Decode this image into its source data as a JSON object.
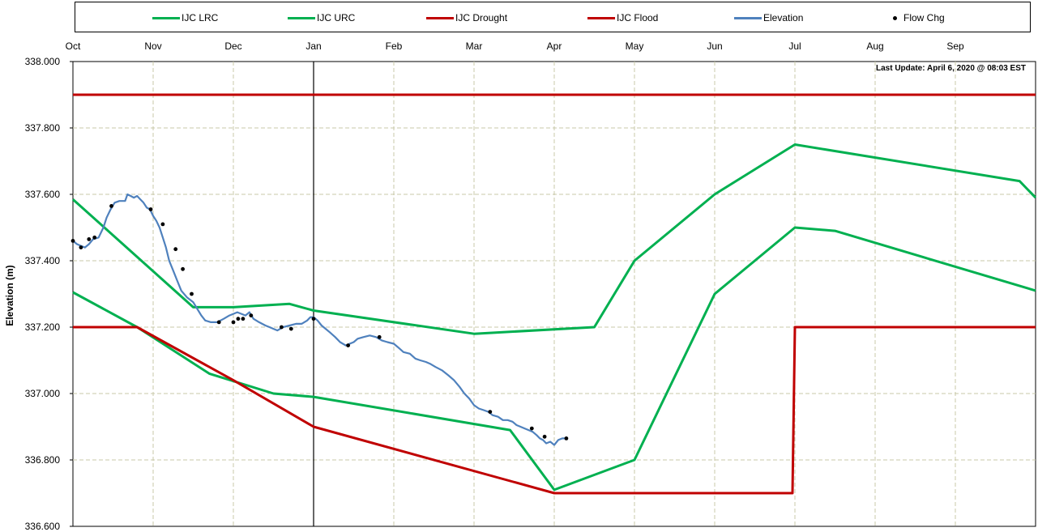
{
  "chart_data": {
    "type": "line",
    "title": "",
    "annotation": "Last Update:  April 6, 2020 @ 08:03 EST",
    "ylabel": "Elevation (m)",
    "xlabel": "",
    "ylim": [
      336.6,
      338.0
    ],
    "y_ticks": [
      "338.000",
      "337.800",
      "337.600",
      "337.400",
      "337.200",
      "337.000",
      "336.800",
      "336.600"
    ],
    "x_categories": [
      "Oct",
      "Nov",
      "Dec",
      "Jan",
      "Feb",
      "Mar",
      "Apr",
      "May",
      "Jun",
      "Jul",
      "Aug",
      "Sep"
    ],
    "x_range_months": [
      0,
      12
    ],
    "current_date_marker_month": 3,
    "grid": true,
    "legend_position": "top",
    "series": [
      {
        "name": "IJC LRC",
        "color": "#00b050",
        "style": "line",
        "points": [
          [
            0,
            337.585
          ],
          [
            1.5,
            337.26
          ],
          [
            2.0,
            337.26
          ],
          [
            2.7,
            337.27
          ],
          [
            3.0,
            337.25
          ],
          [
            5.0,
            337.18
          ],
          [
            6.5,
            337.2
          ],
          [
            7.0,
            337.4
          ],
          [
            8.0,
            337.6
          ],
          [
            9.0,
            337.75
          ],
          [
            11.8,
            337.64
          ],
          [
            12.0,
            337.59
          ]
        ]
      },
      {
        "name": "IJC URC",
        "color": "#00b050",
        "style": "line",
        "points": [
          [
            0,
            337.305
          ],
          [
            0.8,
            337.2
          ],
          [
            1.7,
            337.06
          ],
          [
            2.5,
            337.0
          ],
          [
            3.0,
            336.99
          ],
          [
            5.45,
            336.89
          ],
          [
            6.0,
            336.71
          ],
          [
            7.0,
            336.8
          ],
          [
            8.0,
            337.3
          ],
          [
            9.0,
            337.5
          ],
          [
            9.5,
            337.49
          ],
          [
            12.0,
            337.31
          ]
        ]
      },
      {
        "name": "IJC Drought",
        "color": "#c00000",
        "style": "line",
        "points": [
          [
            0,
            337.2
          ],
          [
            0.8,
            337.2
          ],
          [
            2.0,
            337.04
          ],
          [
            3.0,
            336.9
          ],
          [
            6.0,
            336.7
          ],
          [
            8.97,
            336.7
          ],
          [
            9.0,
            337.2
          ],
          [
            12.0,
            337.2
          ]
        ]
      },
      {
        "name": "IJC Flood",
        "color": "#c00000",
        "style": "line",
        "points": [
          [
            0,
            337.9
          ],
          [
            12.0,
            337.9
          ]
        ]
      },
      {
        "name": "Elevation",
        "color": "#4f81bd",
        "style": "line",
        "points": [
          [
            0,
            337.46
          ],
          [
            0.05,
            337.45
          ],
          [
            0.1,
            337.445
          ],
          [
            0.15,
            337.44
          ],
          [
            0.2,
            337.45
          ],
          [
            0.25,
            337.465
          ],
          [
            0.32,
            337.47
          ],
          [
            0.38,
            337.5
          ],
          [
            0.42,
            337.53
          ],
          [
            0.47,
            337.555
          ],
          [
            0.52,
            337.575
          ],
          [
            0.58,
            337.58
          ],
          [
            0.65,
            337.58
          ],
          [
            0.68,
            337.6
          ],
          [
            0.72,
            337.595
          ],
          [
            0.76,
            337.59
          ],
          [
            0.8,
            337.595
          ],
          [
            0.84,
            337.585
          ],
          [
            0.88,
            337.575
          ],
          [
            0.92,
            337.56
          ],
          [
            0.96,
            337.555
          ],
          [
            1.0,
            337.535
          ],
          [
            1.04,
            337.52
          ],
          [
            1.08,
            337.5
          ],
          [
            1.12,
            337.47
          ],
          [
            1.16,
            337.44
          ],
          [
            1.2,
            337.4
          ],
          [
            1.25,
            337.37
          ],
          [
            1.3,
            337.34
          ],
          [
            1.35,
            337.31
          ],
          [
            1.42,
            337.29
          ],
          [
            1.5,
            337.275
          ],
          [
            1.55,
            337.255
          ],
          [
            1.6,
            337.235
          ],
          [
            1.65,
            337.22
          ],
          [
            1.72,
            337.215
          ],
          [
            1.8,
            337.215
          ],
          [
            1.88,
            337.225
          ],
          [
            1.95,
            337.235
          ],
          [
            2.0,
            337.24
          ],
          [
            2.05,
            337.245
          ],
          [
            2.1,
            337.24
          ],
          [
            2.15,
            337.235
          ],
          [
            2.2,
            337.245
          ],
          [
            2.25,
            337.225
          ],
          [
            2.32,
            337.215
          ],
          [
            2.4,
            337.205
          ],
          [
            2.45,
            337.2
          ],
          [
            2.5,
            337.195
          ],
          [
            2.55,
            337.19
          ],
          [
            2.62,
            337.2
          ],
          [
            2.7,
            337.205
          ],
          [
            2.78,
            337.21
          ],
          [
            2.85,
            337.21
          ],
          [
            2.92,
            337.22
          ],
          [
            2.96,
            337.23
          ],
          [
            3.0,
            337.23
          ],
          [
            3.05,
            337.22
          ],
          [
            3.1,
            337.205
          ],
          [
            3.15,
            337.195
          ],
          [
            3.2,
            337.185
          ],
          [
            3.27,
            337.17
          ],
          [
            3.33,
            337.155
          ],
          [
            3.4,
            337.145
          ],
          [
            3.45,
            337.15
          ],
          [
            3.5,
            337.155
          ],
          [
            3.55,
            337.165
          ],
          [
            3.62,
            337.17
          ],
          [
            3.7,
            337.175
          ],
          [
            3.78,
            337.17
          ],
          [
            3.85,
            337.16
          ],
          [
            3.92,
            337.155
          ],
          [
            4.0,
            337.15
          ],
          [
            4.05,
            337.14
          ],
          [
            4.12,
            337.125
          ],
          [
            4.2,
            337.12
          ],
          [
            4.27,
            337.105
          ],
          [
            4.33,
            337.1
          ],
          [
            4.4,
            337.095
          ],
          [
            4.45,
            337.09
          ],
          [
            4.52,
            337.08
          ],
          [
            4.6,
            337.07
          ],
          [
            4.68,
            337.055
          ],
          [
            4.75,
            337.04
          ],
          [
            4.82,
            337.02
          ],
          [
            4.88,
            337.0
          ],
          [
            4.94,
            336.985
          ],
          [
            5.0,
            336.965
          ],
          [
            5.06,
            336.955
          ],
          [
            5.12,
            336.95
          ],
          [
            5.18,
            336.945
          ],
          [
            5.23,
            336.935
          ],
          [
            5.3,
            336.93
          ],
          [
            5.36,
            336.92
          ],
          [
            5.42,
            336.92
          ],
          [
            5.48,
            336.915
          ],
          [
            5.53,
            336.905
          ],
          [
            5.58,
            336.9
          ],
          [
            5.63,
            336.895
          ],
          [
            5.68,
            336.89
          ],
          [
            5.73,
            336.885
          ],
          [
            5.78,
            336.875
          ],
          [
            5.82,
            336.865
          ],
          [
            5.86,
            336.86
          ],
          [
            5.9,
            336.85
          ],
          [
            5.95,
            336.855
          ],
          [
            6.0,
            336.845
          ],
          [
            6.05,
            336.86
          ],
          [
            6.1,
            336.865
          ],
          [
            6.15,
            336.865
          ]
        ]
      },
      {
        "name": "Flow Chg",
        "color": "#000000",
        "style": "markers",
        "points": [
          [
            0,
            337.46
          ],
          [
            0.1,
            337.44
          ],
          [
            0.2,
            337.465
          ],
          [
            0.27,
            337.47
          ],
          [
            0.48,
            337.565
          ],
          [
            0.97,
            337.555
          ],
          [
            1.12,
            337.51
          ],
          [
            1.28,
            337.435
          ],
          [
            1.37,
            337.375
          ],
          [
            1.48,
            337.3
          ],
          [
            1.82,
            337.215
          ],
          [
            2.0,
            337.215
          ],
          [
            2.06,
            337.225
          ],
          [
            2.12,
            337.225
          ],
          [
            2.22,
            337.235
          ],
          [
            2.6,
            337.2
          ],
          [
            2.72,
            337.195
          ],
          [
            3.0,
            337.225
          ],
          [
            3.43,
            337.145
          ],
          [
            3.82,
            337.17
          ],
          [
            5.2,
            336.945
          ],
          [
            5.72,
            336.895
          ],
          [
            5.88,
            336.87
          ],
          [
            6.15,
            336.865
          ]
        ]
      }
    ]
  }
}
